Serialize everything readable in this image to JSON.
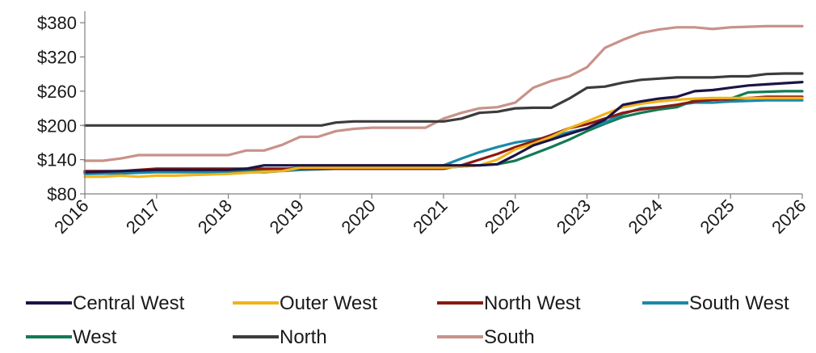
{
  "chart_data": {
    "type": "line",
    "title": "",
    "xlabel": "",
    "ylabel": "",
    "xlim": [
      2016,
      2026
    ],
    "ylim": [
      80,
      400
    ],
    "y_ticks": [
      80,
      140,
      200,
      260,
      320,
      380
    ],
    "y_tick_labels": [
      "$80",
      "$140",
      "$200",
      "$260",
      "$320",
      "$380"
    ],
    "x_ticks": [
      2016,
      2017,
      2018,
      2019,
      2020,
      2021,
      2022,
      2023,
      2024,
      2025,
      2026
    ],
    "x_tick_labels": [
      "2016",
      "2017",
      "2018",
      "2019",
      "2020",
      "2021",
      "2022",
      "2023",
      "2024",
      "2025",
      "2026"
    ],
    "grid": false,
    "legend_position": "bottom",
    "series": [
      {
        "name": "Central West",
        "color": "#1c1446",
        "x": [
          2016,
          2016.5,
          2017,
          2017.5,
          2018,
          2018.25,
          2018.5,
          2019,
          2019.5,
          2020,
          2020.5,
          2021,
          2021.25,
          2021.5,
          2021.75,
          2022,
          2022.25,
          2022.5,
          2022.75,
          2023,
          2023.25,
          2023.5,
          2023.75,
          2024,
          2024.25,
          2024.5,
          2024.75,
          2025,
          2025.25,
          2025.5,
          2025.75,
          2026
        ],
        "y": [
          118,
          120,
          122,
          122,
          122,
          124,
          130,
          130,
          130,
          130,
          130,
          130,
          130,
          130,
          132,
          148,
          165,
          175,
          185,
          195,
          210,
          236,
          242,
          247,
          250,
          260,
          262,
          266,
          270,
          272,
          274,
          276
        ]
      },
      {
        "name": "Outer West",
        "color": "#f1b31c",
        "x": [
          2016,
          2016.25,
          2016.5,
          2016.75,
          2017,
          2017.25,
          2017.5,
          2018,
          2018.5,
          2018.75,
          2019,
          2019.5,
          2020,
          2020.5,
          2021,
          2021.25,
          2021.5,
          2021.75,
          2022,
          2022.25,
          2022.5,
          2022.75,
          2023,
          2023.25,
          2023.5,
          2023.75,
          2024,
          2024.25,
          2024.5,
          2024.75,
          2025,
          2025.25,
          2025.5,
          2025.75,
          2026
        ],
        "y": [
          110,
          110,
          112,
          110,
          112,
          112,
          113,
          115,
          119,
          120,
          126,
          126,
          126,
          126,
          126,
          128,
          130,
          140,
          158,
          168,
          180,
          195,
          207,
          220,
          232,
          238,
          242,
          245,
          247,
          248,
          248,
          248,
          248,
          248,
          248
        ]
      },
      {
        "name": "North West",
        "color": "#8b1a10",
        "x": [
          2016,
          2016.5,
          2017,
          2017.5,
          2018,
          2018.5,
          2019,
          2019.5,
          2020,
          2020.5,
          2021,
          2021.25,
          2021.5,
          2021.75,
          2022,
          2022.25,
          2022.5,
          2022.75,
          2023,
          2023.25,
          2023.5,
          2023.75,
          2024,
          2024.25,
          2024.5,
          2024.75,
          2025,
          2025.25,
          2025.5,
          2025.75,
          2026
        ],
        "y": [
          120,
          120,
          124,
          124,
          124,
          124,
          124,
          124,
          124,
          124,
          124,
          130,
          140,
          150,
          162,
          172,
          183,
          195,
          202,
          212,
          222,
          228,
          232,
          236,
          242,
          245,
          246,
          248,
          250,
          250,
          250
        ]
      },
      {
        "name": "South West",
        "color": "#1a8aa6",
        "x": [
          2016,
          2016.5,
          2017,
          2017.5,
          2018,
          2018.5,
          2019,
          2019.5,
          2020,
          2020.5,
          2021,
          2021.25,
          2021.5,
          2021.75,
          2022,
          2022.25,
          2022.5,
          2022.75,
          2023,
          2023.25,
          2023.5,
          2023.75,
          2024,
          2024.25,
          2024.5,
          2024.75,
          2025,
          2025.25,
          2025.5,
          2025.75,
          2026
        ],
        "y": [
          115,
          116,
          118,
          118,
          118,
          118,
          122,
          124,
          124,
          124,
          130,
          142,
          153,
          162,
          170,
          175,
          180,
          188,
          195,
          205,
          220,
          230,
          232,
          236,
          240,
          240,
          242,
          243,
          244,
          244,
          244
        ]
      },
      {
        "name": "West",
        "color": "#137a53",
        "x": [
          2016,
          2016.5,
          2017,
          2017.5,
          2018,
          2018.5,
          2019,
          2019.5,
          2020,
          2020.5,
          2021,
          2021.25,
          2021.5,
          2021.75,
          2022,
          2022.25,
          2022.5,
          2022.75,
          2023,
          2023.25,
          2023.5,
          2023.75,
          2024,
          2024.25,
          2024.5,
          2024.75,
          2025,
          2025.25,
          2025.5,
          2025.75,
          2026
        ],
        "y": [
          118,
          118,
          120,
          120,
          120,
          120,
          126,
          126,
          126,
          126,
          126,
          128,
          130,
          132,
          138,
          150,
          162,
          175,
          190,
          203,
          215,
          222,
          228,
          232,
          244,
          246,
          247,
          258,
          259,
          260,
          260
        ]
      },
      {
        "name": "North",
        "color": "#3c3c3c",
        "x": [
          2016,
          2016.5,
          2017,
          2017.5,
          2018,
          2018.5,
          2019,
          2019.3,
          2019.5,
          2019.75,
          2020,
          2020.5,
          2021,
          2021.25,
          2021.5,
          2021.75,
          2022,
          2022.25,
          2022.5,
          2022.75,
          2023,
          2023.25,
          2023.5,
          2023.75,
          2024,
          2024.25,
          2024.5,
          2024.75,
          2025,
          2025.25,
          2025.5,
          2025.75,
          2026
        ],
        "y": [
          200,
          200,
          200,
          200,
          200,
          200,
          200,
          200,
          205,
          207,
          207,
          207,
          207,
          212,
          222,
          224,
          230,
          231,
          231,
          247,
          266,
          268,
          275,
          280,
          282,
          284,
          284,
          284,
          286,
          286,
          290,
          291,
          291
        ]
      },
      {
        "name": "South",
        "color": "#c8928a",
        "x": [
          2016,
          2016.25,
          2016.5,
          2016.75,
          2017,
          2017.5,
          2018,
          2018.25,
          2018.5,
          2018.75,
          2019,
          2019.25,
          2019.5,
          2019.75,
          2020,
          2020.5,
          2020.75,
          2021,
          2021.25,
          2021.5,
          2021.75,
          2022,
          2022.25,
          2022.5,
          2022.75,
          2023,
          2023.25,
          2023.5,
          2023.75,
          2024,
          2024.25,
          2024.5,
          2024.75,
          2025,
          2025.25,
          2025.5,
          2025.75,
          2026
        ],
        "y": [
          138,
          138,
          142,
          148,
          148,
          148,
          148,
          156,
          156,
          166,
          180,
          180,
          190,
          194,
          196,
          196,
          196,
          212,
          222,
          230,
          232,
          240,
          266,
          278,
          286,
          302,
          336,
          350,
          362,
          368,
          372,
          372,
          369,
          372,
          373,
          374,
          374,
          374
        ]
      }
    ]
  }
}
